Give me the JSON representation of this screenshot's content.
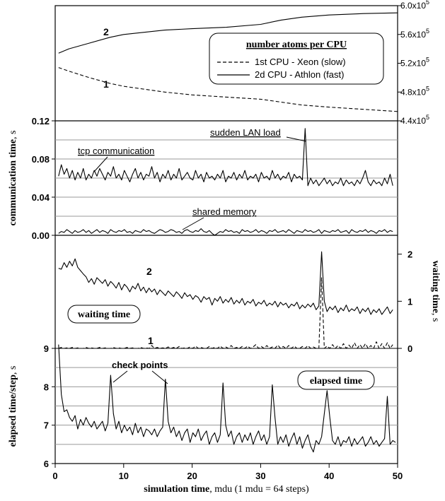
{
  "chart_data": [
    {
      "panel": "atoms",
      "type": "line",
      "ylim": [
        440000,
        600000
      ],
      "yticks": [
        "4.4x10",
        "4.8x10",
        "5.2x10",
        "5.6x10",
        "6.0x10"
      ],
      "ytick_values": [
        440000,
        480000,
        520000,
        560000,
        600000
      ],
      "ytick_exp": "5",
      "legend_title": "number atoms per CPU",
      "series": [
        {
          "name": "2d CPU - Athlon (fast)",
          "label": "2",
          "style": "solid",
          "x": [
            0.5,
            2,
            5,
            8,
            10,
            13,
            16,
            20,
            25,
            30,
            33,
            36,
            40,
            45,
            50
          ],
          "y": [
            534000,
            540000,
            548000,
            556000,
            560000,
            563000,
            566000,
            568000,
            570000,
            574000,
            580000,
            584000,
            587000,
            589000,
            590000
          ]
        },
        {
          "name": "1st CPU - Xeon (slow)",
          "label": "1",
          "style": "dashed",
          "x": [
            0.5,
            2,
            5,
            8,
            10,
            13,
            16,
            20,
            25,
            30,
            33,
            36,
            40,
            45,
            50
          ],
          "y": [
            514000,
            509000,
            500000,
            492000,
            488000,
            484000,
            480000,
            476000,
            473000,
            470000,
            466000,
            462000,
            459000,
            456000,
            453000
          ]
        }
      ]
    },
    {
      "panel": "communication",
      "type": "line",
      "ylabel_bold": "communication time",
      "ylabel_unit": ", s",
      "ylim": [
        0,
        0.12
      ],
      "yticks": [
        "0.00",
        "0.04",
        "0.08",
        "0.12"
      ],
      "ytick_values": [
        0,
        0.04,
        0.08,
        0.12
      ],
      "annotations": {
        "tcp": "tcp  communication",
        "lan": "sudden LAN load",
        "shm": "shared memory"
      },
      "series": [
        {
          "name": "tcp communication",
          "x_start": 0.5,
          "dx": 0.4,
          "y": [
            0.062,
            0.074,
            0.064,
            0.07,
            0.06,
            0.068,
            0.058,
            0.066,
            0.06,
            0.07,
            0.058,
            0.064,
            0.06,
            0.068,
            0.062,
            0.07,
            0.064,
            0.058,
            0.066,
            0.062,
            0.072,
            0.06,
            0.064,
            0.058,
            0.068,
            0.062,
            0.056,
            0.064,
            0.07,
            0.06,
            0.066,
            0.058,
            0.064,
            0.062,
            0.072,
            0.06,
            0.066,
            0.056,
            0.064,
            0.06,
            0.068,
            0.058,
            0.064,
            0.06,
            0.07,
            0.058,
            0.062,
            0.066,
            0.06,
            0.058,
            0.068,
            0.06,
            0.064,
            0.056,
            0.066,
            0.06,
            0.062,
            0.058,
            0.064,
            0.06,
            0.068,
            0.056,
            0.062,
            0.06,
            0.066,
            0.058,
            0.064,
            0.06,
            0.068,
            0.058,
            0.062,
            0.06,
            0.064,
            0.056,
            0.066,
            0.06,
            0.062,
            0.058,
            0.068,
            0.06,
            0.064,
            0.058,
            0.062,
            0.06,
            0.066,
            0.056,
            0.064,
            0.06,
            0.062,
            0.058,
            0.112,
            0.052,
            0.06,
            0.054,
            0.058,
            0.052,
            0.056,
            0.06,
            0.054,
            0.058,
            0.052,
            0.056,
            0.054,
            0.06,
            0.052,
            0.058,
            0.054,
            0.056,
            0.052,
            0.058,
            0.054,
            0.06,
            0.068,
            0.056,
            0.052,
            0.058,
            0.054,
            0.056,
            0.052,
            0.06,
            0.054,
            0.064,
            0.052
          ]
        },
        {
          "name": "shared memory",
          "x_start": 0.5,
          "dx": 0.4,
          "y": [
            0.002,
            0.004,
            0.003,
            0.006,
            0.004,
            0.002,
            0.005,
            0.003,
            0.004,
            0.006,
            0.003,
            0.005,
            0.002,
            0.004,
            0.006,
            0.003,
            0.005,
            0.004,
            0.002,
            0.006,
            0.004,
            0.003,
            0.005,
            0.004,
            0.006,
            0.003,
            0.004,
            0.002,
            0.005,
            0.004,
            0.003,
            0.006,
            0.004,
            0.005,
            0.003,
            0.002,
            0.004,
            0.006,
            0.005,
            0.003,
            0.004,
            0.006,
            0.005,
            0.003,
            0.004,
            0.002,
            0.005,
            0.006,
            0.004,
            0.003,
            0.005,
            0.004,
            0.007,
            0.004,
            0.003,
            0.005,
            0.002,
            0.0,
            0.002,
            0.004,
            0.003,
            0.006,
            0.004,
            0.005,
            0.003,
            0.004,
            0.002,
            0.006,
            0.004,
            0.005,
            0.003,
            0.004,
            0.006,
            0.003,
            0.005,
            0.004,
            0.002,
            0.005,
            0.004,
            0.006,
            0.003,
            0.004,
            0.005,
            0.003,
            0.006,
            0.004,
            0.002,
            0.005,
            0.004,
            0.003,
            0.006,
            0.004,
            0.005,
            0.003,
            0.004,
            0.006,
            0.002,
            0.005,
            0.004,
            0.003,
            0.005,
            0.004,
            0.006,
            0.003,
            0.004,
            0.005,
            0.002,
            0.006,
            0.004,
            0.003,
            0.005,
            0.004,
            0.006,
            0.003,
            0.005,
            0.004,
            0.002,
            0.005,
            0.004,
            0.006,
            0.003,
            0.005,
            0.004
          ]
        }
      ]
    },
    {
      "panel": "waiting",
      "type": "line",
      "ylabel_bold": "waiting time",
      "ylabel_unit": ", s",
      "ylim": [
        0,
        2.4
      ],
      "yticks": [
        "0",
        "1",
        "2"
      ],
      "ytick_values": [
        0,
        1,
        2
      ],
      "box_label": "waiting time",
      "series": [
        {
          "name": "2",
          "label": "2",
          "style": "solid",
          "x_start": 0.5,
          "dx": 0.4,
          "y": [
            1.7,
            1.68,
            1.82,
            1.72,
            1.85,
            1.75,
            1.9,
            1.72,
            1.65,
            1.58,
            1.52,
            1.4,
            1.48,
            1.36,
            1.5,
            1.44,
            1.38,
            1.46,
            1.32,
            1.42,
            1.36,
            1.28,
            1.4,
            1.24,
            1.36,
            1.3,
            1.2,
            1.32,
            1.26,
            1.38,
            1.22,
            1.3,
            1.18,
            1.28,
            1.2,
            1.26,
            1.14,
            1.24,
            1.18,
            1.12,
            1.22,
            1.16,
            1.1,
            1.2,
            1.14,
            1.06,
            1.18,
            1.1,
            1.14,
            1.04,
            1.12,
            1.08,
            0.98,
            1.1,
            1.04,
            1.08,
            0.92,
            1.06,
            1.0,
            1.1,
            0.96,
            1.04,
            0.98,
            1.08,
            0.94,
            1.02,
            0.96,
            1.06,
            0.92,
            1.0,
            0.96,
            1.04,
            0.9,
            0.98,
            0.94,
            1.02,
            0.9,
            0.96,
            0.92,
            1.0,
            0.88,
            0.98,
            0.92,
            0.96,
            0.86,
            0.94,
            0.9,
            0.98,
            0.84,
            0.92,
            0.86,
            0.94,
            0.88,
            0.96,
            0.82,
            0.9,
            2.05,
            1.0,
            0.78,
            0.88,
            0.82,
            0.9,
            0.76,
            0.86,
            0.8,
            0.92,
            0.78,
            0.84,
            0.8,
            0.88,
            0.74,
            0.84,
            0.78,
            0.86,
            0.72,
            0.82,
            0.76,
            0.84,
            0.72,
            0.8,
            0.88,
            0.74,
            0.82
          ]
        },
        {
          "name": "1",
          "label": "1",
          "style": "dashed",
          "x_start": 0.5,
          "dx": 0.4,
          "y": [
            0.0,
            0.02,
            0.0,
            0.01,
            0.0,
            0.02,
            0.0,
            0.01,
            0.0,
            0.0,
            0.02,
            0.0,
            0.01,
            0.0,
            0.0,
            0.02,
            0.0,
            0.01,
            0.0,
            0.0,
            0.02,
            0.0,
            0.01,
            0.0,
            0.0,
            0.02,
            0.0,
            0.01,
            0.0,
            0.0,
            0.02,
            0.0,
            0.01,
            0.0,
            0.06,
            0.0,
            0.02,
            0.0,
            0.01,
            0.0,
            0.03,
            0.0,
            0.02,
            0.0,
            0.04,
            0.0,
            0.01,
            0.0,
            0.03,
            0.0,
            0.05,
            0.0,
            0.02,
            0.0,
            0.0,
            0.04,
            0.0,
            0.02,
            0.0,
            0.05,
            0.0,
            0.03,
            0.0,
            0.06,
            0.0,
            0.02,
            0.0,
            0.04,
            0.0,
            0.05,
            0.0,
            0.03,
            0.08,
            0.0,
            0.04,
            0.0,
            0.06,
            0.0,
            0.03,
            0.0,
            0.07,
            0.0,
            0.04,
            0.0,
            0.06,
            0.0,
            0.05,
            0.0,
            0.0,
            0.04,
            0.0,
            0.06,
            0.0,
            0.03,
            0.0,
            0.0,
            1.5,
            0.0,
            0.05,
            0.0,
            0.08,
            0.0,
            0.06,
            0.0,
            0.1,
            0.0,
            0.07,
            0.0,
            0.12,
            0.0,
            0.08,
            0.0,
            0.1,
            0.0,
            0.06,
            0.0,
            0.14,
            0.0,
            0.1,
            0.0,
            0.12,
            0.0,
            0.08
          ]
        }
      ]
    },
    {
      "panel": "elapsed",
      "type": "line",
      "ylabel_bold": "elapsed time/step",
      "ylabel_unit": ", s",
      "ylim": [
        6,
        9
      ],
      "yticks": [
        "6",
        "7",
        "8",
        "9"
      ],
      "ytick_values": [
        6,
        7,
        8,
        9
      ],
      "box_label": "elapsed time",
      "check_label": "check points",
      "xlim": [
        0,
        50
      ],
      "xticks": [
        "0",
        "10",
        "20",
        "30",
        "40",
        "50"
      ],
      "xtick_values": [
        0,
        10,
        20,
        30,
        40,
        50
      ],
      "xlabel_bold": "simulation time",
      "xlabel_rest": ", mdu (1 mdu = 64 steps)",
      "series": [
        {
          "name": "elapsed",
          "x_start": 0.5,
          "dx": 0.4,
          "y": [
            9.1,
            7.8,
            7.35,
            7.4,
            7.2,
            7.1,
            7.25,
            6.9,
            7.15,
            7.0,
            7.2,
            7.05,
            6.95,
            7.1,
            6.9,
            7.0,
            7.1,
            6.85,
            7.05,
            8.3,
            7.3,
            6.9,
            7.1,
            6.8,
            7.0,
            6.85,
            6.95,
            6.75,
            7.05,
            6.8,
            6.95,
            6.7,
            6.9,
            6.85,
            6.75,
            6.9,
            6.7,
            6.85,
            6.95,
            8.2,
            7.1,
            6.8,
            6.95,
            6.7,
            6.85,
            6.6,
            6.8,
            6.9,
            6.55,
            6.8,
            6.7,
            6.9,
            6.6,
            6.75,
            6.85,
            6.5,
            6.7,
            6.8,
            6.55,
            6.75,
            8.1,
            7.0,
            6.7,
            6.85,
            6.5,
            6.7,
            6.8,
            6.55,
            6.75,
            6.6,
            6.8,
            6.5,
            6.7,
            6.85,
            6.6,
            6.75,
            6.5,
            6.7,
            8.05,
            7.2,
            6.5,
            6.7,
            6.55,
            6.75,
            6.45,
            6.65,
            6.8,
            6.5,
            6.7,
            6.4,
            6.6,
            6.75,
            6.45,
            6.3,
            6.6,
            6.5,
            6.7,
            7.3,
            7.9,
            7.2,
            6.6,
            6.5,
            6.7,
            6.45,
            6.6,
            6.55,
            6.7,
            6.45,
            6.65,
            6.5,
            6.6,
            6.7,
            6.45,
            6.55,
            6.7,
            6.5,
            6.6,
            6.45,
            6.55,
            6.65,
            7.75,
            6.5,
            6.6,
            6.55
          ]
        }
      ]
    }
  ]
}
